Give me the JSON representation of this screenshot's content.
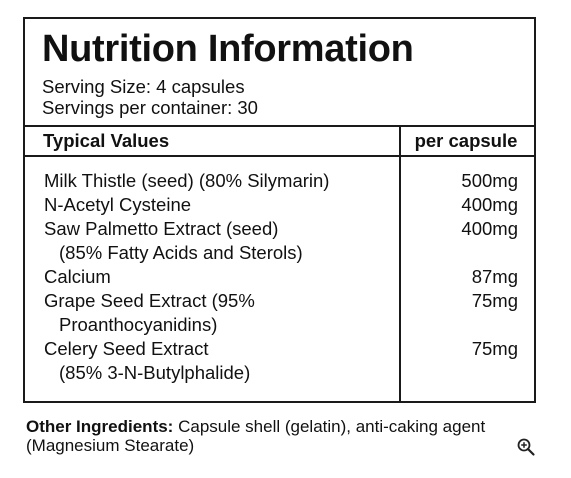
{
  "label": {
    "title": "Nutrition Information",
    "serving_size": "Serving Size: 4 capsules",
    "servings_per_container": "Servings per container: 30",
    "columns": {
      "left": "Typical Values",
      "right": "per capsule"
    },
    "rows": [
      {
        "name": "Milk Thistle (seed) (80% Silymarin)",
        "sub": "",
        "value": "500mg"
      },
      {
        "name": "N-Acetyl Cysteine",
        "sub": "",
        "value": "400mg"
      },
      {
        "name": "Saw Palmetto Extract (seed)",
        "sub": "(85% Fatty Acids and Sterols)",
        "value": "400mg"
      },
      {
        "name": "Calcium",
        "sub": "",
        "value": "87mg"
      },
      {
        "name": "Grape Seed Extract (95%",
        "sub": "Proanthocyanidins)",
        "value": "75mg"
      },
      {
        "name": "Celery Seed Extract",
        "sub": "(85% 3-N-Butylphalide)",
        "value": "75mg"
      }
    ]
  },
  "other_ingredients": {
    "heading": "Other Ingredients:",
    "text": " Capsule shell (gelatin), anti-caking agent (Magnesium Stearate)"
  },
  "icons": {
    "zoom": "zoom-in-icon"
  }
}
